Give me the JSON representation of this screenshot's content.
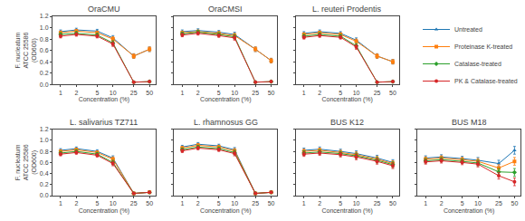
{
  "chart_data": [
    {
      "type": "line",
      "title": "OraCMU",
      "x_label": "Concentration (%)",
      "y_label": "F. nucleatum ATCC 25586 (OD600)",
      "log": "x",
      "grid": false,
      "legend": "upper right",
      "xlim": [
        0.7,
        65
      ],
      "xticks": [
        1,
        2,
        5,
        10,
        25,
        50
      ],
      "ylim": [
        0.0,
        1.2
      ],
      "yticks": [
        {
          "value": 0.0,
          "label": "0.0"
        },
        0.2,
        0.4,
        0.6,
        0.8,
        {
          "value": 1.0,
          "label": "1.0"
        },
        1.2
      ],
      "x": [
        1,
        2,
        5,
        10,
        25,
        50
      ],
      "series": [
        {
          "name": "Untreated",
          "color": "#1f77b4",
          "marker": "triangle",
          "line_style": "solid",
          "values": [
            0.93,
            0.96,
            0.94,
            0.82,
            0.5,
            0.62
          ],
          "errors": [
            0.03,
            0.03,
            0.03,
            0.04,
            0.04,
            0.04
          ]
        },
        {
          "name": "Proteinase K-treated",
          "color": "#ff7f0e",
          "marker": "square",
          "line_style": "solid",
          "values": [
            0.91,
            0.94,
            0.91,
            0.8,
            0.5,
            0.62
          ],
          "errors": [
            0.03,
            0.03,
            0.03,
            0.04,
            0.04,
            0.04
          ]
        },
        {
          "name": "Catalase-treated",
          "color": "#2ca02c",
          "marker": "diamond",
          "line_style": "solid",
          "values": [
            0.88,
            0.9,
            0.87,
            0.73,
            0.04,
            0.05
          ],
          "errors": [
            0.03,
            0.03,
            0.03,
            0.04,
            0.01,
            0.01
          ]
        },
        {
          "name": "PK & Catalase-treated",
          "color": "#d62728",
          "marker": "circle",
          "line_style": "solid",
          "values": [
            0.85,
            0.88,
            0.85,
            0.71,
            0.04,
            0.05
          ],
          "errors": [
            0.03,
            0.03,
            0.03,
            0.04,
            0.01,
            0.01
          ]
        }
      ]
    },
    {
      "type": "line",
      "title": "OraCMSI",
      "x_label": "Concentration (%)",
      "log": "x",
      "grid": false,
      "legend": "upper right",
      "xlim": [
        0.7,
        65
      ],
      "xticks": [
        1,
        2,
        5,
        10,
        25,
        50
      ],
      "ylim": [
        0.0,
        1.2
      ],
      "yticks": [
        {
          "value": 0.0,
          "label": "0.0"
        },
        0.2,
        0.4,
        0.6,
        0.8,
        {
          "value": 1.0,
          "label": "1.0"
        },
        1.2
      ],
      "x": [
        1,
        2,
        5,
        10,
        25,
        50
      ],
      "series": [
        {
          "name": "Untreated",
          "color": "#1f77b4",
          "marker": "triangle",
          "line_style": "solid",
          "values": [
            0.93,
            0.95,
            0.92,
            0.88,
            0.62,
            0.42
          ],
          "errors": [
            0.03,
            0.03,
            0.03,
            0.04,
            0.04,
            0.04
          ]
        },
        {
          "name": "Proteinase K-treated",
          "color": "#ff7f0e",
          "marker": "square",
          "line_style": "solid",
          "values": [
            0.91,
            0.93,
            0.9,
            0.86,
            0.62,
            0.42
          ],
          "errors": [
            0.03,
            0.03,
            0.03,
            0.04,
            0.04,
            0.04
          ]
        },
        {
          "name": "Catalase-treated",
          "color": "#2ca02c",
          "marker": "diamond",
          "line_style": "solid",
          "values": [
            0.89,
            0.92,
            0.88,
            0.84,
            0.04,
            0.05
          ],
          "errors": [
            0.03,
            0.03,
            0.03,
            0.04,
            0.01,
            0.01
          ]
        },
        {
          "name": "PK & Catalase-treated",
          "color": "#d62728",
          "marker": "circle",
          "line_style": "solid",
          "values": [
            0.87,
            0.9,
            0.86,
            0.82,
            0.04,
            0.05
          ],
          "errors": [
            0.03,
            0.03,
            0.03,
            0.04,
            0.01,
            0.01
          ]
        }
      ]
    },
    {
      "type": "line",
      "title": "L. reuteri Prodentis",
      "x_label": "Concentration (%)",
      "log": "x",
      "grid": false,
      "legend": "upper right",
      "xlim": [
        0.7,
        65
      ],
      "xticks": [
        1,
        2,
        5,
        10,
        25,
        50
      ],
      "ylim": [
        0.0,
        1.2
      ],
      "yticks": [
        {
          "value": 0.0,
          "label": "0.0"
        },
        0.2,
        0.4,
        0.6,
        0.8,
        {
          "value": 1.0,
          "label": "1.0"
        },
        1.2
      ],
      "x": [
        1,
        2,
        5,
        10,
        25,
        50
      ],
      "series": [
        {
          "name": "Untreated",
          "color": "#1f77b4",
          "marker": "triangle",
          "line_style": "solid",
          "values": [
            0.9,
            0.93,
            0.9,
            0.78,
            0.5,
            0.4
          ],
          "errors": [
            0.03,
            0.03,
            0.03,
            0.04,
            0.04,
            0.04
          ]
        },
        {
          "name": "Proteinase K-treated",
          "color": "#ff7f0e",
          "marker": "square",
          "line_style": "solid",
          "values": [
            0.88,
            0.91,
            0.88,
            0.76,
            0.5,
            0.4
          ],
          "errors": [
            0.03,
            0.03,
            0.03,
            0.04,
            0.04,
            0.04
          ]
        },
        {
          "name": "Catalase-treated",
          "color": "#2ca02c",
          "marker": "diamond",
          "line_style": "solid",
          "values": [
            0.85,
            0.88,
            0.85,
            0.68,
            0.04,
            0.05
          ],
          "errors": [
            0.03,
            0.03,
            0.03,
            0.04,
            0.01,
            0.01
          ]
        },
        {
          "name": "PK & Catalase-treated",
          "color": "#d62728",
          "marker": "circle",
          "line_style": "solid",
          "values": [
            0.83,
            0.86,
            0.83,
            0.66,
            0.04,
            0.05
          ],
          "errors": [
            0.03,
            0.03,
            0.03,
            0.04,
            0.01,
            0.01
          ]
        }
      ]
    },
    {
      "type": "line",
      "title": "L. salivarius TZ711",
      "x_label": "Concentration (%)",
      "y_label": "F. nucleatum ATCC 25586 (OD600)",
      "log": "x",
      "grid": false,
      "legend": "upper right",
      "xlim": [
        0.7,
        65
      ],
      "xticks": [
        1,
        2,
        5,
        10,
        25,
        50
      ],
      "ylim": [
        0.0,
        1.2
      ],
      "yticks": [
        {
          "value": 0.0,
          "label": "0.0"
        },
        0.2,
        0.4,
        0.6,
        0.8,
        {
          "value": 1.0,
          "label": "1.0"
        },
        1.2
      ],
      "x": [
        1,
        2,
        5,
        10,
        25,
        50
      ],
      "series": [
        {
          "name": "Untreated",
          "color": "#1f77b4",
          "marker": "triangle",
          "line_style": "solid",
          "values": [
            0.82,
            0.85,
            0.8,
            0.68,
            0.04,
            0.06
          ],
          "errors": [
            0.03,
            0.03,
            0.03,
            0.04,
            0.01,
            0.01
          ]
        },
        {
          "name": "Proteinase K-treated",
          "color": "#ff7f0e",
          "marker": "square",
          "line_style": "solid",
          "values": [
            0.8,
            0.83,
            0.78,
            0.66,
            0.04,
            0.06
          ],
          "errors": [
            0.03,
            0.03,
            0.03,
            0.04,
            0.01,
            0.01
          ]
        },
        {
          "name": "Catalase-treated",
          "color": "#2ca02c",
          "marker": "diamond",
          "line_style": "solid",
          "values": [
            0.77,
            0.8,
            0.75,
            0.6,
            0.04,
            0.06
          ],
          "errors": [
            0.03,
            0.03,
            0.03,
            0.04,
            0.01,
            0.01
          ]
        },
        {
          "name": "PK & Catalase-treated",
          "color": "#d62728",
          "marker": "circle",
          "line_style": "solid",
          "values": [
            0.75,
            0.78,
            0.73,
            0.58,
            0.04,
            0.06
          ],
          "errors": [
            0.03,
            0.03,
            0.03,
            0.04,
            0.01,
            0.01
          ]
        }
      ]
    },
    {
      "type": "line",
      "title": "L. rhamnosus GG",
      "x_label": "Concentration (%)",
      "log": "x",
      "grid": false,
      "legend": "upper right",
      "xlim": [
        0.7,
        65
      ],
      "xticks": [
        1,
        2,
        5,
        10,
        25,
        50
      ],
      "ylim": [
        0.0,
        1.2
      ],
      "yticks": [
        {
          "value": 0.0,
          "label": "0.0"
        },
        0.2,
        0.4,
        0.6,
        0.8,
        {
          "value": 1.0,
          "label": "1.0"
        },
        1.2
      ],
      "x": [
        1,
        2,
        5,
        10,
        25,
        50
      ],
      "series": [
        {
          "name": "Untreated",
          "color": "#1f77b4",
          "marker": "triangle",
          "line_style": "solid",
          "values": [
            0.88,
            0.93,
            0.9,
            0.83,
            0.04,
            0.06
          ],
          "errors": [
            0.03,
            0.03,
            0.03,
            0.04,
            0.01,
            0.01
          ]
        },
        {
          "name": "Proteinase K-treated",
          "color": "#ff7f0e",
          "marker": "square",
          "line_style": "solid",
          "values": [
            0.86,
            0.91,
            0.88,
            0.81,
            0.04,
            0.06
          ],
          "errors": [
            0.03,
            0.03,
            0.03,
            0.04,
            0.01,
            0.01
          ]
        },
        {
          "name": "Catalase-treated",
          "color": "#2ca02c",
          "marker": "diamond",
          "line_style": "solid",
          "values": [
            0.83,
            0.88,
            0.85,
            0.78,
            0.04,
            0.06
          ],
          "errors": [
            0.03,
            0.03,
            0.03,
            0.04,
            0.01,
            0.01
          ]
        },
        {
          "name": "PK & Catalase-treated",
          "color": "#d62728",
          "marker": "circle",
          "line_style": "solid",
          "values": [
            0.81,
            0.86,
            0.83,
            0.76,
            0.04,
            0.06
          ],
          "errors": [
            0.03,
            0.03,
            0.03,
            0.04,
            0.01,
            0.01
          ]
        }
      ]
    },
    {
      "type": "line",
      "title": "BUS K12",
      "x_label": "Concentration (%)",
      "log": "x",
      "grid": false,
      "legend": "upper right",
      "xlim": [
        0.7,
        65
      ],
      "xticks": [
        1,
        2,
        5,
        10,
        25,
        50
      ],
      "ylim": [
        0.0,
        1.2
      ],
      "yticks": [
        {
          "value": 0.0,
          "label": "0.0"
        },
        0.2,
        0.4,
        0.6,
        0.8,
        {
          "value": 1.0,
          "label": "1.0"
        },
        1.2
      ],
      "x": [
        1,
        2,
        5,
        10,
        25,
        50
      ],
      "series": [
        {
          "name": "Untreated",
          "color": "#1f77b4",
          "marker": "triangle",
          "line_style": "solid",
          "values": [
            0.82,
            0.84,
            0.8,
            0.76,
            0.68,
            0.6
          ],
          "errors": [
            0.04,
            0.04,
            0.04,
            0.05,
            0.05,
            0.05
          ]
        },
        {
          "name": "Proteinase K-treated",
          "color": "#ff7f0e",
          "marker": "square",
          "line_style": "solid",
          "values": [
            0.8,
            0.82,
            0.78,
            0.74,
            0.66,
            0.58
          ],
          "errors": [
            0.04,
            0.04,
            0.04,
            0.05,
            0.05,
            0.05
          ]
        },
        {
          "name": "Catalase-treated",
          "color": "#2ca02c",
          "marker": "diamond",
          "line_style": "solid",
          "values": [
            0.77,
            0.79,
            0.76,
            0.72,
            0.64,
            0.56
          ],
          "errors": [
            0.04,
            0.04,
            0.04,
            0.05,
            0.05,
            0.05
          ]
        },
        {
          "name": "PK & Catalase-treated",
          "color": "#d62728",
          "marker": "circle",
          "line_style": "solid",
          "values": [
            0.75,
            0.77,
            0.74,
            0.7,
            0.62,
            0.54
          ],
          "errors": [
            0.04,
            0.04,
            0.04,
            0.05,
            0.05,
            0.05
          ]
        }
      ]
    },
    {
      "type": "line",
      "title": "BUS M18",
      "x_label": "Concentration (%)",
      "log": "x",
      "grid": false,
      "legend": "upper right",
      "xlim": [
        0.7,
        65
      ],
      "xticks": [
        1,
        2,
        5,
        10,
        25,
        50
      ],
      "ylim": [
        0.0,
        1.2
      ],
      "yticks": [
        {
          "value": 0.0,
          "label": "0.0"
        },
        0.2,
        0.4,
        0.6,
        0.8,
        {
          "value": 1.0,
          "label": "1.0"
        },
        1.2
      ],
      "x": [
        1,
        2,
        5,
        10,
        25,
        50
      ],
      "series": [
        {
          "name": "Untreated",
          "color": "#1f77b4",
          "marker": "triangle",
          "line_style": "solid",
          "values": [
            0.68,
            0.7,
            0.67,
            0.64,
            0.58,
            0.82
          ],
          "errors": [
            0.04,
            0.04,
            0.04,
            0.05,
            0.06,
            0.07
          ]
        },
        {
          "name": "Proteinase K-treated",
          "color": "#ff7f0e",
          "marker": "square",
          "line_style": "solid",
          "values": [
            0.66,
            0.68,
            0.65,
            0.62,
            0.5,
            0.62
          ],
          "errors": [
            0.04,
            0.04,
            0.04,
            0.05,
            0.06,
            0.07
          ]
        },
        {
          "name": "Catalase-treated",
          "color": "#2ca02c",
          "marker": "diamond",
          "line_style": "solid",
          "values": [
            0.63,
            0.65,
            0.62,
            0.59,
            0.43,
            0.42
          ],
          "errors": [
            0.04,
            0.04,
            0.04,
            0.05,
            0.06,
            0.07
          ]
        },
        {
          "name": "PK & Catalase-treated",
          "color": "#d62728",
          "marker": "circle",
          "line_style": "solid",
          "values": [
            0.61,
            0.63,
            0.6,
            0.57,
            0.36,
            0.25
          ],
          "errors": [
            0.04,
            0.04,
            0.04,
            0.05,
            0.06,
            0.07
          ]
        }
      ]
    }
  ]
}
